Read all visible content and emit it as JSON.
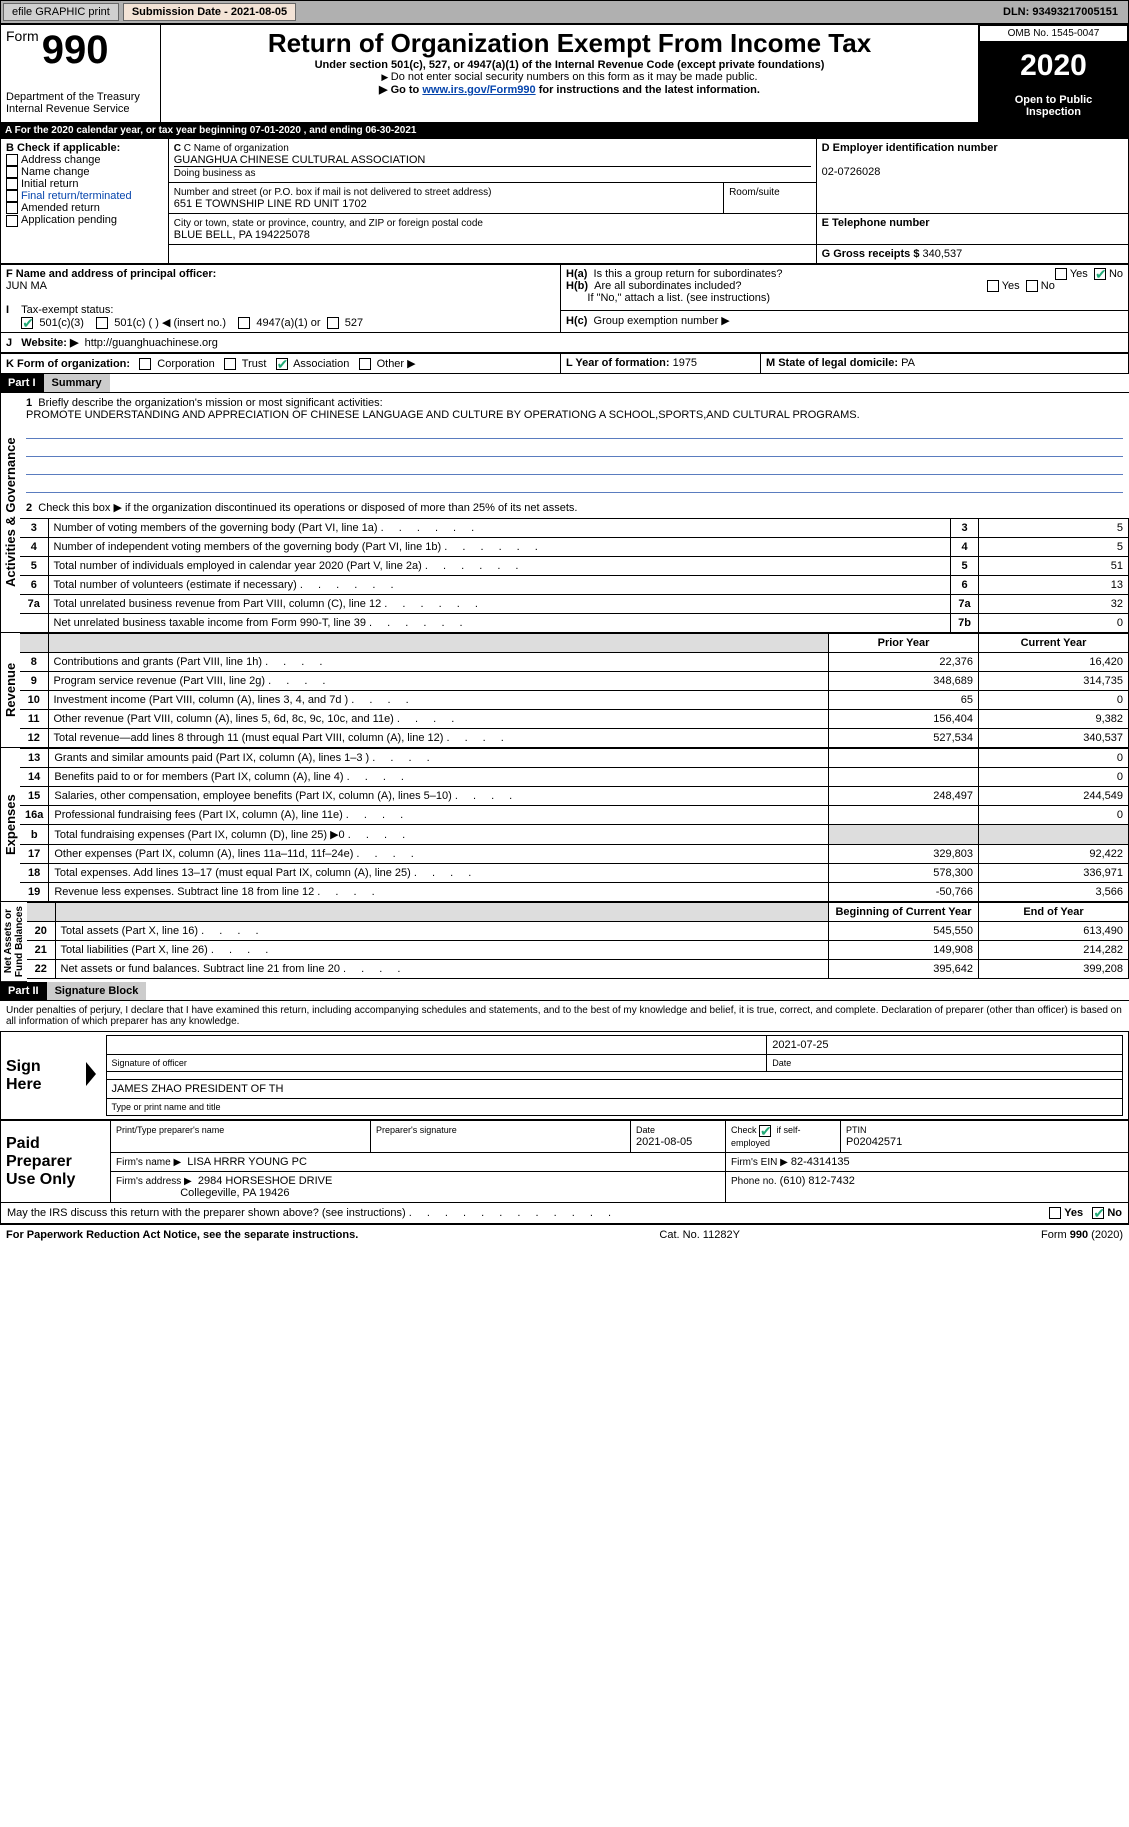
{
  "topbar": {
    "efile_btn": "efile GRAPHIC print",
    "submission_label": "Submission Date - 2021-08-05",
    "dln": "DLN: 93493217005151"
  },
  "header": {
    "form_word": "Form",
    "form_num": "990",
    "dept": "Department of the Treasury\nInternal Revenue Service",
    "title": "Return of Organization Exempt From Income Tax",
    "line1": "Under section 501(c), 527, or 4947(a)(1) of the Internal Revenue Code (except private foundations)",
    "line2": "Do not enter social security numbers on this form as it may be made public.",
    "line3a": "Go to ",
    "line3_link": "www.irs.gov/Form990",
    "line3b": " for instructions and the latest information.",
    "omb": "OMB No. 1545-0047",
    "year": "2020",
    "inspection": "Open to Public\nInspection"
  },
  "period": {
    "text_a": "For the 2020 calendar year, or tax year beginning ",
    "begin": "07-01-2020",
    "text_b": " , and ending ",
    "end": "06-30-2021"
  },
  "boxB": {
    "title": "B Check if applicable:",
    "items": [
      "Address change",
      "Name change",
      "Initial return",
      "Final return/terminated",
      "Amended return",
      "Application pending"
    ]
  },
  "boxC": {
    "name_label": "C Name of organization",
    "name": "GUANGHUA CHINESE CULTURAL ASSOCIATION",
    "dba_label": "Doing business as",
    "street_label": "Number and street (or P.O. box if mail is not delivered to street address)",
    "room_label": "Room/suite",
    "street": "651 E TOWNSHIP LINE RD UNIT 1702",
    "city_label": "City or town, state or province, country, and ZIP or foreign postal code",
    "city": "BLUE BELL, PA  194225078"
  },
  "boxD": {
    "label": "D Employer identification number",
    "value": "02-0726028"
  },
  "boxE": {
    "label": "E Telephone number",
    "value": ""
  },
  "boxG": {
    "label": "G Gross receipts $",
    "value": "340,537"
  },
  "boxF": {
    "label": "F  Name and address of principal officer:",
    "value": "JUN MA"
  },
  "boxH": {
    "ha": "Is this a group return for subordinates?",
    "hb": "Are all subordinates included?",
    "hb_note": "If \"No,\" attach a list. (see instructions)",
    "hc": "Group exemption number ▶",
    "yes": "Yes",
    "no": "No"
  },
  "rowI": {
    "label": "Tax-exempt status:",
    "o1": "501(c)(3)",
    "o2": "501(c) (  ) ◀ (insert no.)",
    "o3": "4947(a)(1) or",
    "o4": "527"
  },
  "rowJ": {
    "label": "Website: ▶",
    "value": "http://guanghuachinese.org"
  },
  "rowK": {
    "label": "K Form of organization:",
    "o1": "Corporation",
    "o2": "Trust",
    "o3": "Association",
    "o4": "Other ▶"
  },
  "rowL": {
    "label": "L Year of formation:",
    "value": "1975"
  },
  "rowM": {
    "label": "M State of legal domicile:",
    "value": "PA"
  },
  "part1": {
    "header": "Part I",
    "title": "Summary"
  },
  "mission": {
    "q": "Briefly describe the organization's mission or most significant activities:",
    "text": "PROMOTE UNDERSTANDING AND APPRECIATION OF CHINESE LANGUAGE AND CULTURE BY OPERATIONG A SCHOOL,SPORTS,AND CULTURAL PROGRAMS."
  },
  "line2": "Check this box ▶        if the organization discontinued its operations or disposed of more than 25% of its net assets.",
  "sec_labels": {
    "gov": "Activities & Governance",
    "rev": "Revenue",
    "exp": "Expenses",
    "net": "Net Assets or\nFund Balances"
  },
  "gov_rows": [
    {
      "n": "3",
      "t": "Number of voting members of the governing body (Part VI, line 1a)",
      "box": "3",
      "v": "5"
    },
    {
      "n": "4",
      "t": "Number of independent voting members of the governing body (Part VI, line 1b)",
      "box": "4",
      "v": "5"
    },
    {
      "n": "5",
      "t": "Total number of individuals employed in calendar year 2020 (Part V, line 2a)",
      "box": "5",
      "v": "51"
    },
    {
      "n": "6",
      "t": "Total number of volunteers (estimate if necessary)",
      "box": "6",
      "v": "13"
    },
    {
      "n": "7a",
      "t": "Total unrelated business revenue from Part VIII, column (C), line 12",
      "box": "7a",
      "v": "32"
    },
    {
      "n": "",
      "t": "Net unrelated business taxable income from Form 990-T, line 39",
      "box": "7b",
      "v": "0"
    }
  ],
  "col_headers": {
    "prior": "Prior Year",
    "curr": "Current Year",
    "begin": "Beginning of Current Year",
    "end": "End of Year"
  },
  "rev_rows": [
    {
      "n": "8",
      "t": "Contributions and grants (Part VIII, line 1h)",
      "p": "22,376",
      "c": "16,420"
    },
    {
      "n": "9",
      "t": "Program service revenue (Part VIII, line 2g)",
      "p": "348,689",
      "c": "314,735"
    },
    {
      "n": "10",
      "t": "Investment income (Part VIII, column (A), lines 3, 4, and 7d )",
      "p": "65",
      "c": "0"
    },
    {
      "n": "11",
      "t": "Other revenue (Part VIII, column (A), lines 5, 6d, 8c, 9c, 10c, and 11e)",
      "p": "156,404",
      "c": "9,382"
    },
    {
      "n": "12",
      "t": "Total revenue—add lines 8 through 11 (must equal Part VIII, column (A), line 12)",
      "p": "527,534",
      "c": "340,537"
    }
  ],
  "exp_rows": [
    {
      "n": "13",
      "t": "Grants and similar amounts paid (Part IX, column (A), lines 1–3 )",
      "p": "",
      "c": "0"
    },
    {
      "n": "14",
      "t": "Benefits paid to or for members (Part IX, column (A), line 4)",
      "p": "",
      "c": "0"
    },
    {
      "n": "15",
      "t": "Salaries, other compensation, employee benefits (Part IX, column (A), lines 5–10)",
      "p": "248,497",
      "c": "244,549"
    },
    {
      "n": "16a",
      "t": "Professional fundraising fees (Part IX, column (A), line 11e)",
      "p": "",
      "c": "0"
    },
    {
      "n": "b",
      "t": "Total fundraising expenses (Part IX, column (D), line 25) ▶0",
      "p": "grey",
      "c": "grey"
    },
    {
      "n": "17",
      "t": "Other expenses (Part IX, column (A), lines 11a–11d, 11f–24e)",
      "p": "329,803",
      "c": "92,422"
    },
    {
      "n": "18",
      "t": "Total expenses. Add lines 13–17 (must equal Part IX, column (A), line 25)",
      "p": "578,300",
      "c": "336,971"
    },
    {
      "n": "19",
      "t": "Revenue less expenses. Subtract line 18 from line 12",
      "p": "-50,766",
      "c": "3,566"
    }
  ],
  "net_rows": [
    {
      "n": "20",
      "t": "Total assets (Part X, line 16)",
      "p": "545,550",
      "c": "613,490"
    },
    {
      "n": "21",
      "t": "Total liabilities (Part X, line 26)",
      "p": "149,908",
      "c": "214,282"
    },
    {
      "n": "22",
      "t": "Net assets or fund balances. Subtract line 21 from line 20",
      "p": "395,642",
      "c": "399,208"
    }
  ],
  "part2": {
    "header": "Part II",
    "title": "Signature Block"
  },
  "penalties": "Under penalties of perjury, I declare that I have examined this return, including accompanying schedules and statements, and to the best of my knowledge and belief, it is true, correct, and complete. Declaration of preparer (other than officer) is based on all information of which preparer has any knowledge.",
  "sign": {
    "label": "Sign Here",
    "sig_of_officer": "Signature of officer",
    "date": "Date",
    "date_val": "2021-07-25",
    "typed": "JAMES ZHAO PRESIDENT OF TH",
    "typed_label": "Type or print name and title"
  },
  "paid": {
    "label": "Paid Preparer Use Only",
    "h1": "Print/Type preparer's name",
    "h2": "Preparer's signature",
    "h3": "Date",
    "h3v": "2021-08-05",
    "h4": "Check        if self-employed",
    "h5": "PTIN",
    "h5v": "P02042571",
    "firm_name_l": "Firm's name    ▶",
    "firm_name": "LISA HRRR YOUNG PC",
    "firm_ein_l": "Firm's EIN ▶",
    "firm_ein": "82-4314135",
    "firm_addr_l": "Firm's address ▶",
    "firm_addr1": "2984 HORSESHOE DRIVE",
    "firm_addr2": "Collegeville, PA  19426",
    "phone_l": "Phone no.",
    "phone": "(610) 812-7432"
  },
  "discuss": "May the IRS discuss this return with the preparer shown above? (see instructions)",
  "footer": {
    "left": "For Paperwork Reduction Act Notice, see the separate instructions.",
    "mid": "Cat. No. 11282Y",
    "right": "Form 990 (2020)"
  },
  "style": {
    "header_bg": "#b0b0b0",
    "orange": "#f3e3d6",
    "accent": "#5a7cbf"
  }
}
